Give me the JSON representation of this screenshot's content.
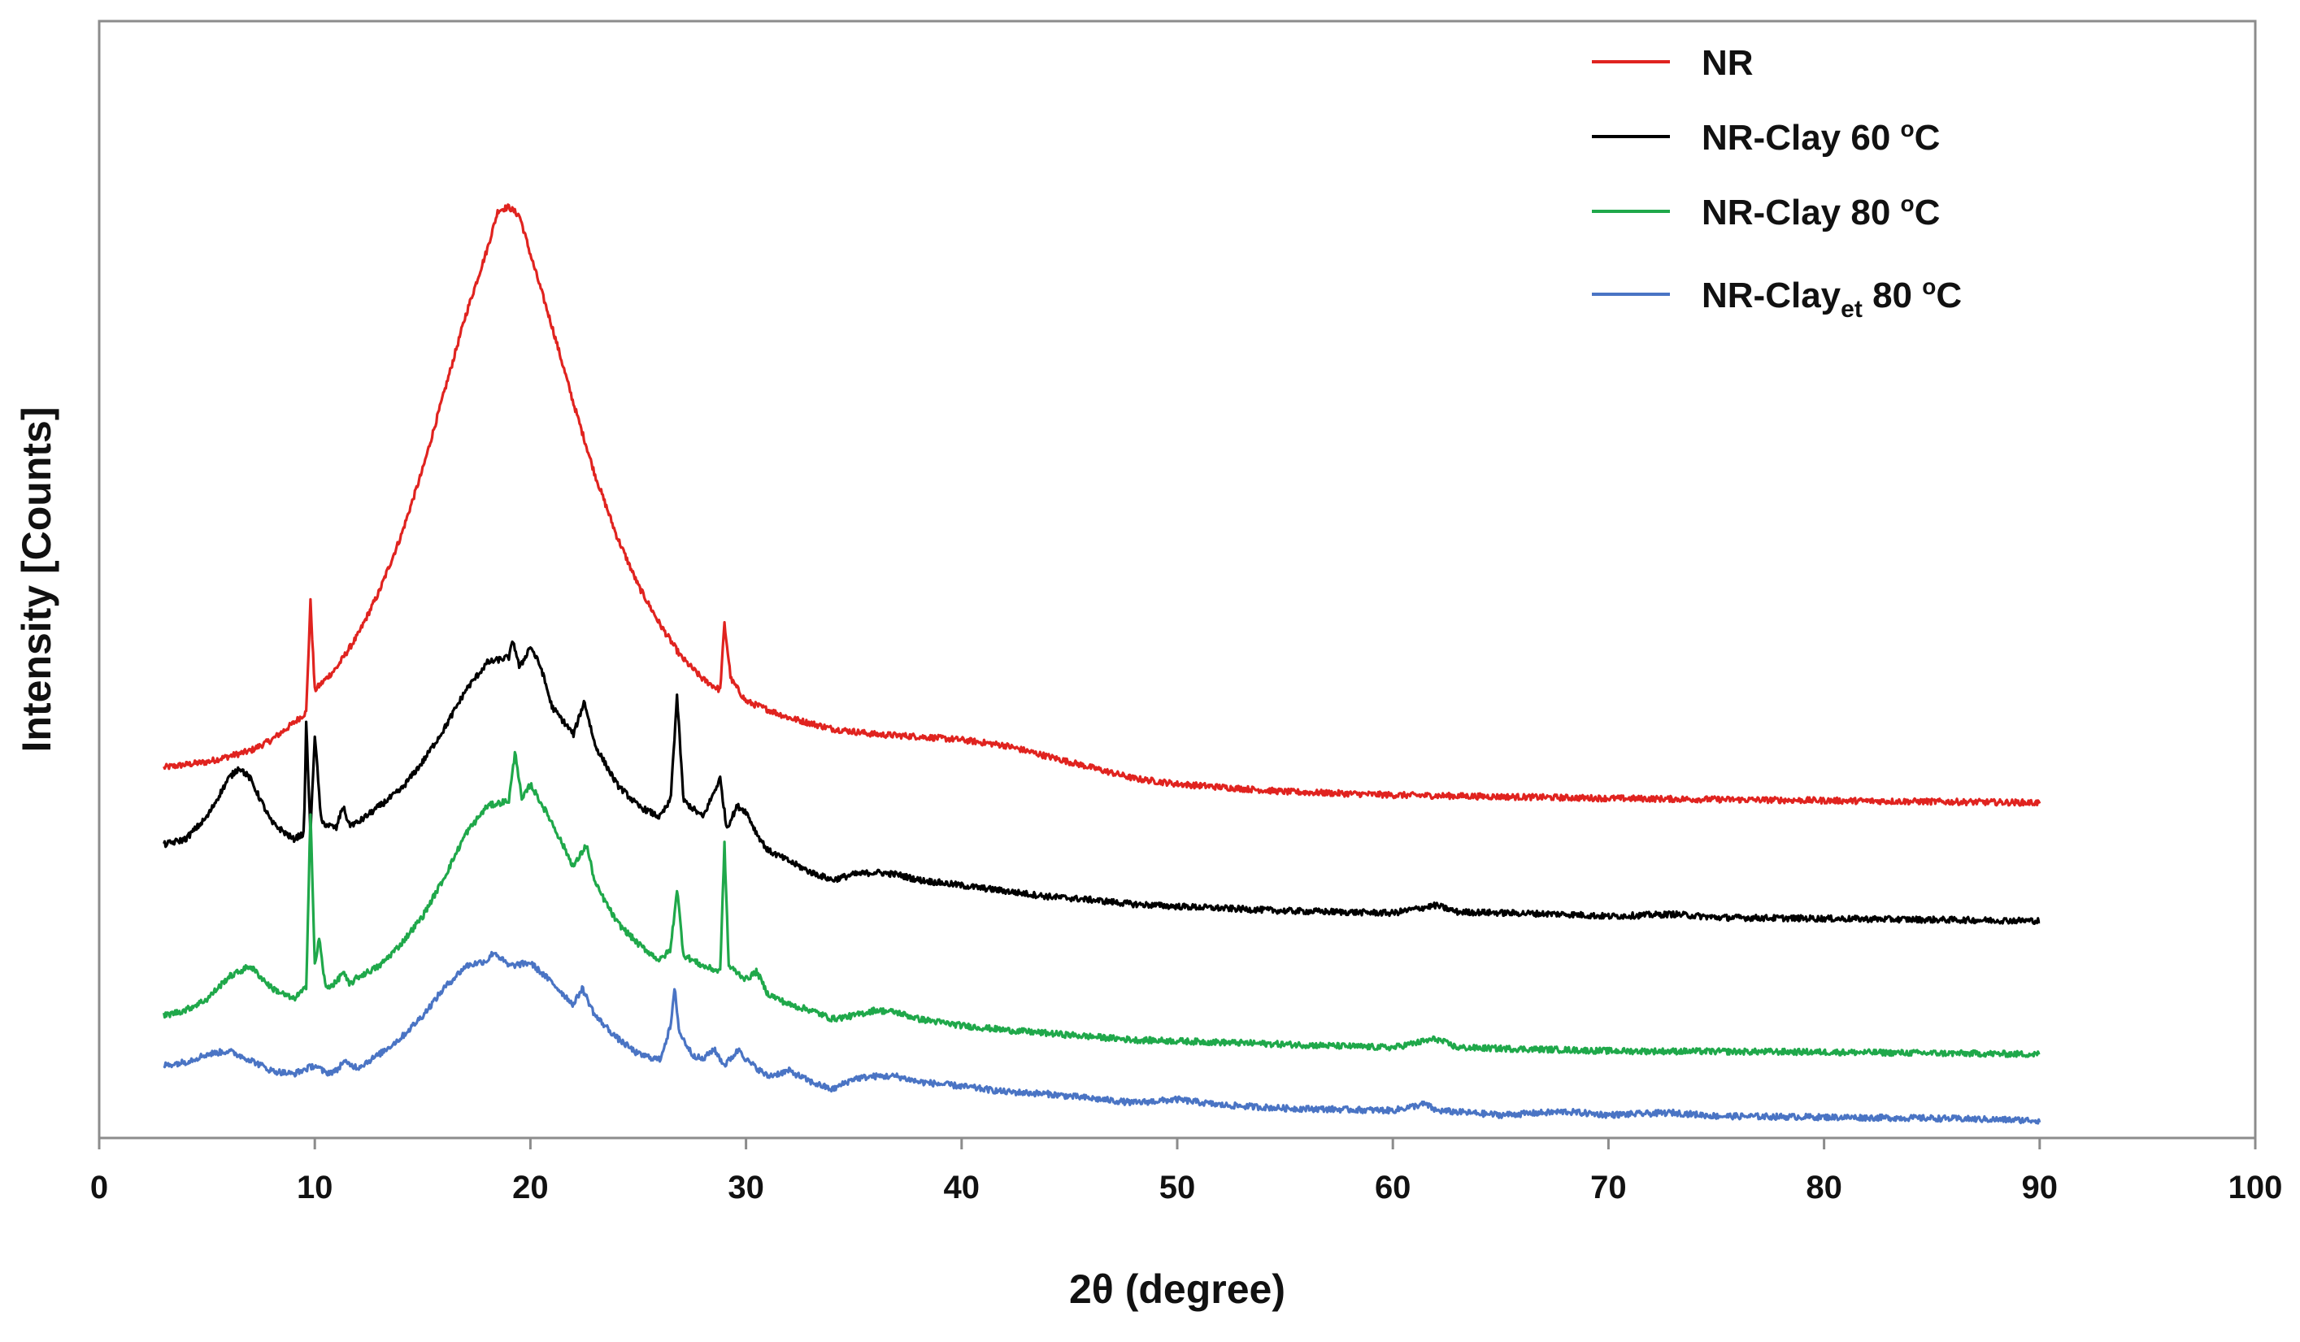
{
  "chart_data": {
    "type": "line",
    "title": "",
    "xlabel": "2θ (degree)",
    "ylabel": "Intensity [Counts]",
    "xlim": [
      0,
      100
    ],
    "ylim": [
      0,
      100
    ],
    "x_ticks": [
      0,
      10,
      20,
      30,
      40,
      50,
      60,
      70,
      80,
      90,
      100
    ],
    "x_tick_labels": [
      "0",
      "10",
      "20",
      "30",
      "40",
      "50",
      "60",
      "70",
      "80",
      "90",
      "100"
    ],
    "y_ticks_shown": false,
    "grid": false,
    "legend_position": "top-right",
    "series": [
      {
        "name": "NR",
        "legend_label": {
          "main": "NR",
          "sub": "",
          "temp": "",
          "sup": "",
          "unit": ""
        },
        "color": "#e0231f",
        "points": [
          [
            3,
            33
          ],
          [
            5,
            33.5
          ],
          [
            7,
            34.5
          ],
          [
            8,
            35.5
          ],
          [
            9,
            37
          ],
          [
            9.6,
            38
          ],
          [
            9.8,
            48
          ],
          [
            10,
            40
          ],
          [
            11,
            42
          ],
          [
            12,
            45
          ],
          [
            13,
            49
          ],
          [
            14,
            54
          ],
          [
            15,
            60
          ],
          [
            16,
            67
          ],
          [
            17,
            74
          ],
          [
            18,
            80
          ],
          [
            18.5,
            83.5
          ],
          [
            19,
            83.8
          ],
          [
            19.5,
            83
          ],
          [
            20,
            79.5
          ],
          [
            21,
            73
          ],
          [
            22,
            66
          ],
          [
            23,
            59.5
          ],
          [
            24,
            54
          ],
          [
            25,
            49.5
          ],
          [
            26,
            46
          ],
          [
            27,
            43
          ],
          [
            28,
            41
          ],
          [
            28.8,
            40
          ],
          [
            29,
            46
          ],
          [
            29.3,
            41
          ],
          [
            30,
            39
          ],
          [
            32,
            37.5
          ],
          [
            34,
            36.5
          ],
          [
            36,
            36
          ],
          [
            38,
            35.8
          ],
          [
            40,
            35.5
          ],
          [
            42,
            35
          ],
          [
            44,
            34
          ],
          [
            46,
            33
          ],
          [
            48,
            32
          ],
          [
            50,
            31.5
          ],
          [
            55,
            30.8
          ],
          [
            60,
            30.5
          ],
          [
            70,
            30.2
          ],
          [
            80,
            30
          ],
          [
            90,
            29.8
          ]
        ]
      },
      {
        "name": "NR-Clay 60 oC",
        "legend_label": {
          "main": "NR-Clay",
          "sub": "",
          "temp": " 60 ",
          "sup": "o",
          "unit": "C"
        },
        "color": "#000000",
        "points": [
          [
            3,
            26
          ],
          [
            4,
            26.5
          ],
          [
            5,
            28.5
          ],
          [
            6,
            32
          ],
          [
            6.5,
            33
          ],
          [
            7,
            32
          ],
          [
            8,
            28
          ],
          [
            9,
            26.5
          ],
          [
            9.5,
            27
          ],
          [
            9.6,
            37
          ],
          [
            9.8,
            27
          ],
          [
            10,
            36
          ],
          [
            10.3,
            28
          ],
          [
            11,
            27.5
          ],
          [
            11.3,
            29.5
          ],
          [
            11.6,
            27.8
          ],
          [
            12,
            28
          ],
          [
            13,
            29.5
          ],
          [
            14,
            31
          ],
          [
            15,
            33.5
          ],
          [
            16,
            36.5
          ],
          [
            17,
            40
          ],
          [
            18,
            42.5
          ],
          [
            19,
            43
          ],
          [
            19.2,
            44.5
          ],
          [
            19.5,
            42
          ],
          [
            20,
            44
          ],
          [
            20.5,
            42
          ],
          [
            21,
            38.5
          ],
          [
            22,
            36
          ],
          [
            22.5,
            39
          ],
          [
            23,
            35
          ],
          [
            24,
            31.5
          ],
          [
            25,
            29.5
          ],
          [
            26,
            28.5
          ],
          [
            26.5,
            30
          ],
          [
            26.8,
            39.5
          ],
          [
            27.1,
            30
          ],
          [
            28,
            28.5
          ],
          [
            28.8,
            32
          ],
          [
            29.1,
            27.5
          ],
          [
            29.6,
            29.5
          ],
          [
            30,
            29
          ],
          [
            30.5,
            27
          ],
          [
            31,
            25.5
          ],
          [
            32,
            24.5
          ],
          [
            33,
            23.5
          ],
          [
            34,
            22.8
          ],
          [
            35,
            23.3
          ],
          [
            36,
            23.5
          ],
          [
            37,
            23.3
          ],
          [
            38,
            22.8
          ],
          [
            40,
            22.3
          ],
          [
            42,
            21.8
          ],
          [
            44,
            21.3
          ],
          [
            46,
            21
          ],
          [
            48,
            20.6
          ],
          [
            50,
            20.4
          ],
          [
            55,
            20
          ],
          [
            60,
            19.8
          ],
          [
            62,
            20.5
          ],
          [
            63,
            19.9
          ],
          [
            68,
            19.7
          ],
          [
            70,
            19.5
          ],
          [
            73,
            19.7
          ],
          [
            75,
            19.4
          ],
          [
            80,
            19.3
          ],
          [
            90,
            19.1
          ]
        ]
      },
      {
        "name": "NR-Clay 80 oC",
        "legend_label": {
          "main": "NR-Clay",
          "sub": "",
          "temp": " 80 ",
          "sup": "o",
          "unit": "C"
        },
        "color": "#1fa84a",
        "points": [
          [
            3,
            10.5
          ],
          [
            4,
            11
          ],
          [
            5,
            12
          ],
          [
            6,
            14
          ],
          [
            7,
            15
          ],
          [
            8,
            13
          ],
          [
            9,
            12
          ],
          [
            9.6,
            13
          ],
          [
            9.8,
            29
          ],
          [
            10,
            15
          ],
          [
            10.2,
            17.5
          ],
          [
            10.5,
            13
          ],
          [
            11,
            13.5
          ],
          [
            11.3,
            14.5
          ],
          [
            11.6,
            13.3
          ],
          [
            12,
            14
          ],
          [
            13,
            15
          ],
          [
            14,
            17
          ],
          [
            15,
            19.5
          ],
          [
            16,
            23
          ],
          [
            17,
            27
          ],
          [
            18,
            29.5
          ],
          [
            19,
            30
          ],
          [
            19.3,
            34.5
          ],
          [
            19.6,
            30
          ],
          [
            20,
            31.5
          ],
          [
            21,
            28
          ],
          [
            22,
            24
          ],
          [
            22.6,
            26
          ],
          [
            23,
            22.5
          ],
          [
            24,
            19
          ],
          [
            25,
            17
          ],
          [
            26,
            15.5
          ],
          [
            26.5,
            16.5
          ],
          [
            26.8,
            22
          ],
          [
            27.1,
            16
          ],
          [
            28,
            15
          ],
          [
            28.8,
            14.5
          ],
          [
            29,
            26
          ],
          [
            29.2,
            15
          ],
          [
            30,
            13.8
          ],
          [
            30.5,
            14.5
          ],
          [
            31,
            12.5
          ],
          [
            32,
            11.5
          ],
          [
            33,
            11
          ],
          [
            34,
            10.2
          ],
          [
            35,
            10.5
          ],
          [
            36,
            11
          ],
          [
            37,
            10.8
          ],
          [
            38,
            10.2
          ],
          [
            40,
            9.6
          ],
          [
            42,
            9.2
          ],
          [
            44,
            8.9
          ],
          [
            46,
            8.6
          ],
          [
            48,
            8.3
          ],
          [
            50,
            8.2
          ],
          [
            55,
            7.9
          ],
          [
            60,
            7.6
          ],
          [
            62,
            8.4
          ],
          [
            63,
            7.6
          ],
          [
            68,
            7.4
          ],
          [
            70,
            7.3
          ],
          [
            80,
            7.2
          ],
          [
            90,
            7
          ]
        ]
      },
      {
        "name": "NR-Clayet 80 oC",
        "legend_label": {
          "main": "NR-Clay",
          "sub": "et",
          "temp": " 80 ",
          "sup": "o",
          "unit": "C"
        },
        "color": "#4a74c4",
        "points": [
          [
            3,
            6
          ],
          [
            4,
            6.3
          ],
          [
            5,
            7
          ],
          [
            6,
            7.3
          ],
          [
            7,
            6.5
          ],
          [
            8,
            5.5
          ],
          [
            9,
            5.2
          ],
          [
            10,
            6
          ],
          [
            10.5,
            5.3
          ],
          [
            11,
            5.5
          ],
          [
            11.3,
            6.3
          ],
          [
            12,
            5.8
          ],
          [
            13,
            7
          ],
          [
            14,
            8.5
          ],
          [
            15,
            10.5
          ],
          [
            16,
            13
          ],
          [
            17,
            15
          ],
          [
            18,
            15.5
          ],
          [
            18.3,
            16.3
          ],
          [
            19,
            15
          ],
          [
            20,
            15.3
          ],
          [
            21,
            13.5
          ],
          [
            22,
            11.5
          ],
          [
            22.4,
            13
          ],
          [
            23,
            10.5
          ],
          [
            24,
            8.5
          ],
          [
            25,
            7
          ],
          [
            26,
            6.5
          ],
          [
            26.5,
            9.5
          ],
          [
            26.7,
            13
          ],
          [
            26.9,
            9
          ],
          [
            27.5,
            7
          ],
          [
            28,
            6.5
          ],
          [
            28.5,
            7.5
          ],
          [
            29,
            6
          ],
          [
            29.7,
            7.5
          ],
          [
            30,
            6.5
          ],
          [
            31,
            5
          ],
          [
            32,
            5.5
          ],
          [
            33,
            4.5
          ],
          [
            34,
            3.8
          ],
          [
            35,
            4.8
          ],
          [
            36,
            5
          ],
          [
            37,
            5
          ],
          [
            38,
            4.5
          ],
          [
            40,
            4.1
          ],
          [
            42,
            3.6
          ],
          [
            44,
            3.4
          ],
          [
            46,
            3
          ],
          [
            48,
            2.6
          ],
          [
            50,
            2.9
          ],
          [
            52,
            2.4
          ],
          [
            55,
            2.1
          ],
          [
            60,
            1.9
          ],
          [
            61.5,
            2.5
          ],
          [
            62,
            1.9
          ],
          [
            65,
            1.5
          ],
          [
            68,
            1.8
          ],
          [
            70,
            1.5
          ],
          [
            73,
            1.7
          ],
          [
            75,
            1.4
          ],
          [
            80,
            1.3
          ],
          [
            85,
            1.2
          ],
          [
            90,
            1
          ]
        ]
      }
    ]
  }
}
